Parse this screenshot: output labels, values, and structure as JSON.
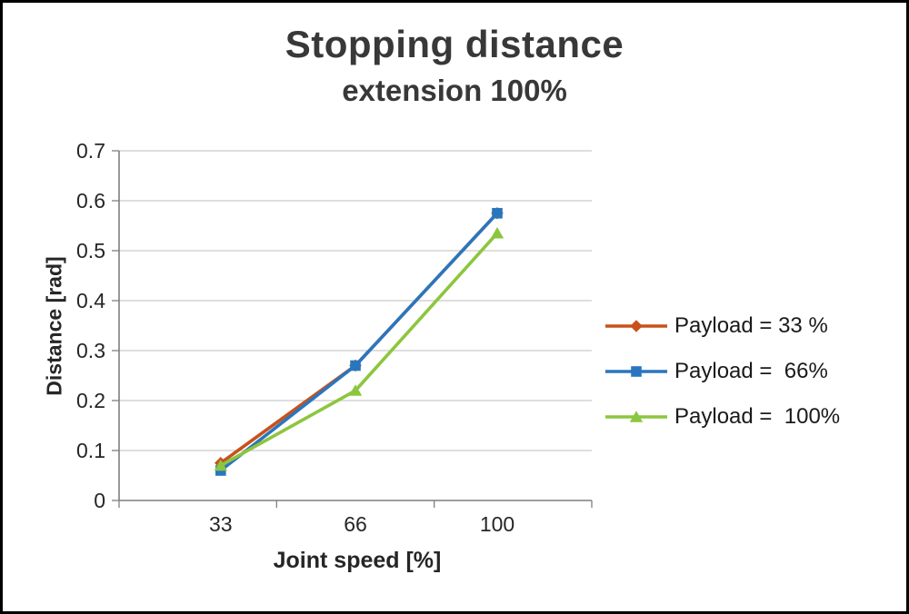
{
  "title": "Stopping distance",
  "subtitle": "extension 100%",
  "chart_data": {
    "type": "line",
    "categories": [
      "33",
      "66",
      "100"
    ],
    "series": [
      {
        "name": "Payload = 33 %",
        "marker": "diamond",
        "color": "#C8511C",
        "values": [
          0.075,
          0.27,
          0.575
        ]
      },
      {
        "name": "Payload =  66%",
        "marker": "square",
        "color": "#2A76BE",
        "values": [
          0.06,
          0.27,
          0.575
        ]
      },
      {
        "name": "Payload =  100%",
        "marker": "triangle",
        "color": "#8CC63E",
        "values": [
          0.07,
          0.22,
          0.535
        ]
      }
    ],
    "xlabel": "Joint speed [%]",
    "ylabel": "Distance [rad]",
    "ylim": [
      0,
      0.7
    ],
    "ytick_step": 0.1,
    "yticks": [
      "0",
      "0.1",
      "0.2",
      "0.3",
      "0.4",
      "0.5",
      "0.6",
      "0.7"
    ],
    "grid": true,
    "legend_position": "right",
    "colors": {
      "gridline": "#c9c9c9",
      "axis": "#7f7f7f",
      "tick_label": "#262626",
      "title": "#383838"
    }
  }
}
